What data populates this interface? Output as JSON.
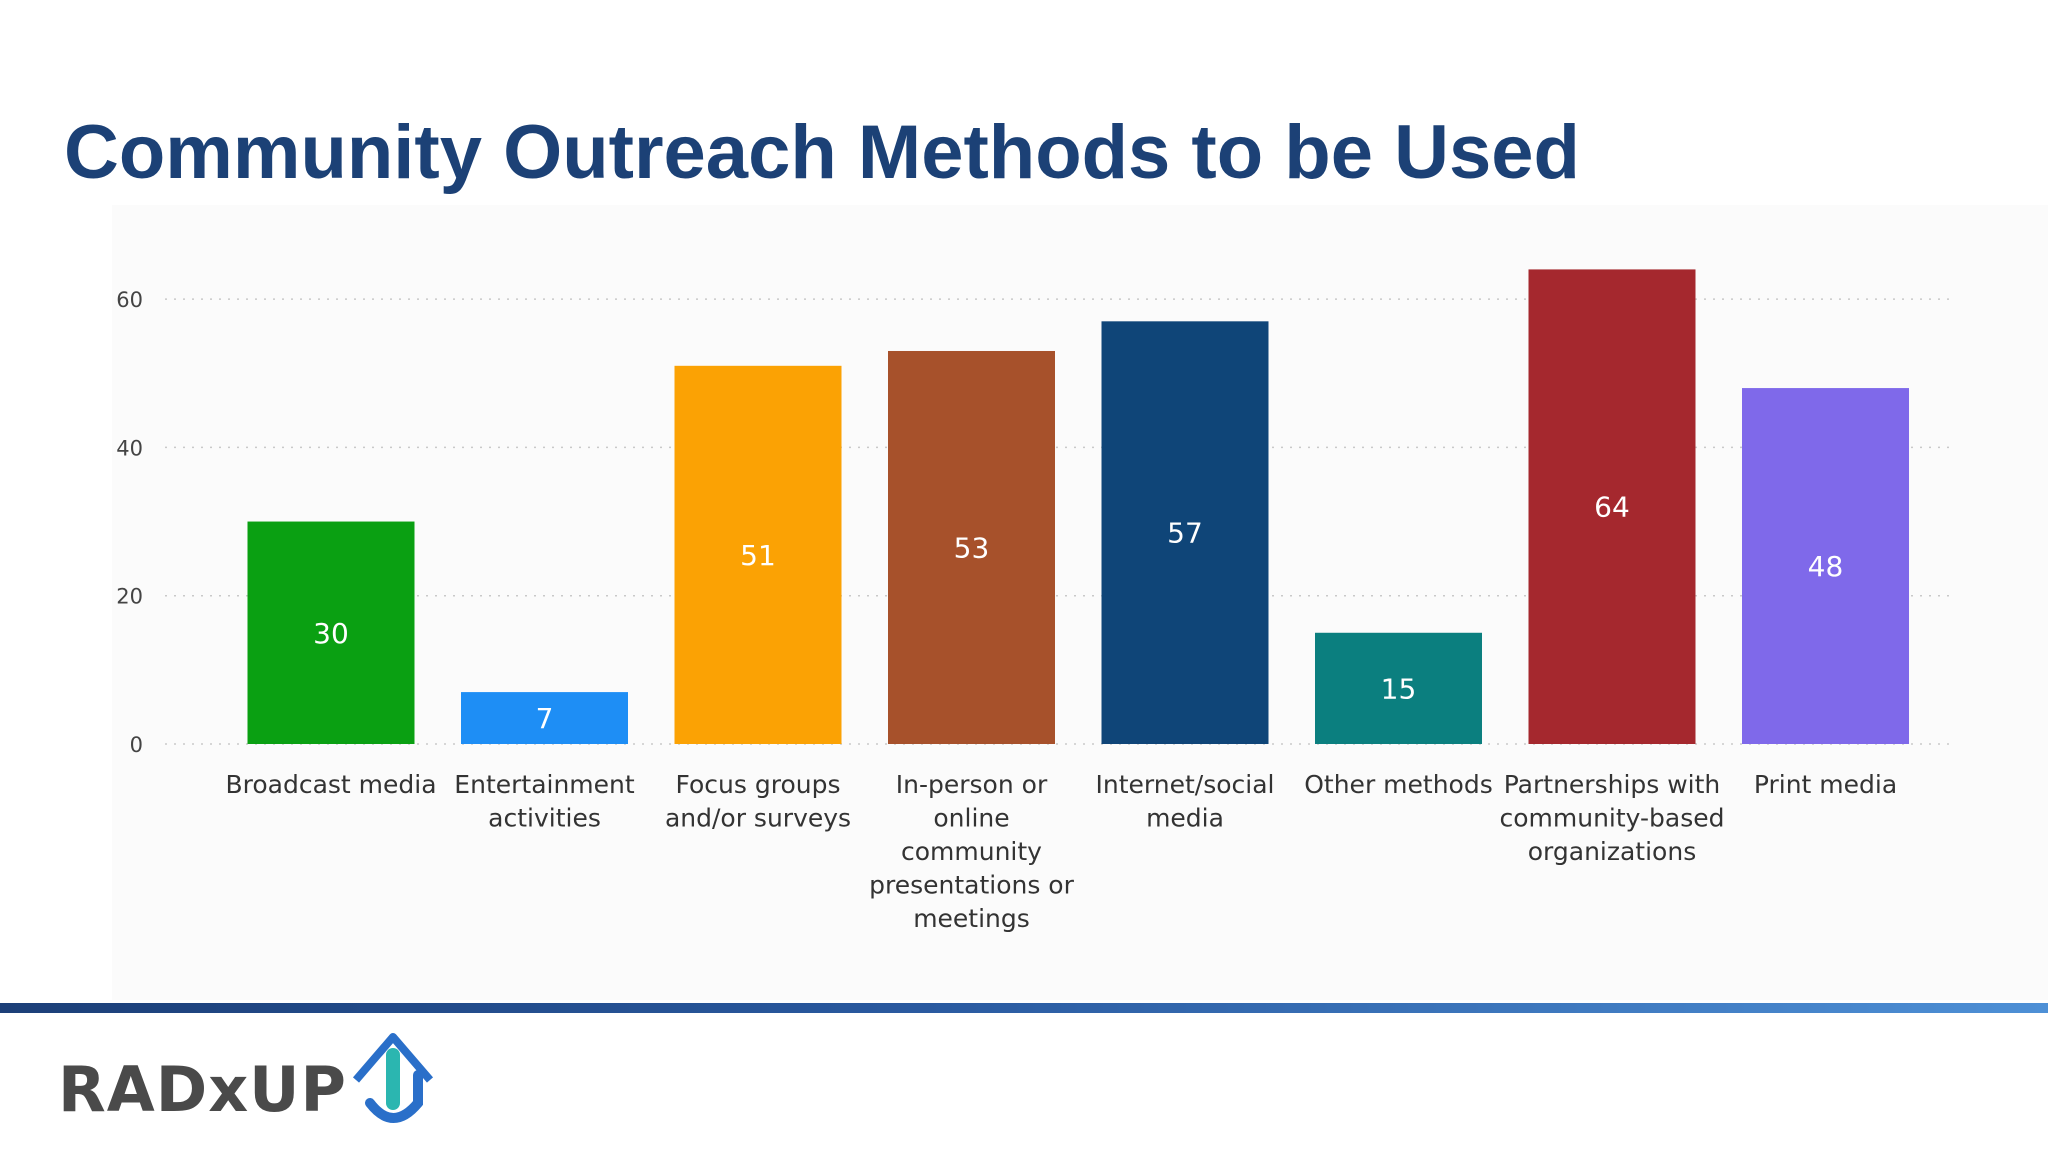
{
  "slide": {
    "title": "Community Outreach Methods to be Used"
  },
  "logo": {
    "text": "RADxUP",
    "colors": {
      "text": "#4a4a4a",
      "arrow_teal": "#2bb6b0",
      "arrow_blue": "#2a6fc9"
    }
  },
  "chart_data": {
    "type": "bar",
    "title": "",
    "xlabel": "",
    "ylabel": "",
    "ylim": [
      0,
      65
    ],
    "yticks": [
      0,
      20,
      40,
      60
    ],
    "grid": true,
    "legend": "none",
    "categories": [
      "Broadcast media",
      "Entertainment activities",
      "Focus groups and/or surveys",
      "In-person or online community presentations or meetings",
      "Internet/social media",
      "Other methods",
      "Partnerships with community-based organizations",
      "Print media"
    ],
    "category_lines": [
      [
        "Broadcast media"
      ],
      [
        "Entertainment",
        "activities"
      ],
      [
        "Focus groups",
        "and/or surveys"
      ],
      [
        "In-person or",
        "online",
        "community",
        "presentations or",
        "meetings"
      ],
      [
        "Internet/social",
        "media"
      ],
      [
        "Other methods"
      ],
      [
        "Partnerships with",
        "community-based",
        "organizations"
      ],
      [
        "Print media"
      ]
    ],
    "values": [
      30,
      7,
      51,
      53,
      57,
      15,
      64,
      48
    ],
    "colors": [
      "#0aa012",
      "#1e8ef5",
      "#fba204",
      "#a7512b",
      "#0f4578",
      "#0b7f7f",
      "#a5282e",
      "#7f69ea"
    ]
  }
}
